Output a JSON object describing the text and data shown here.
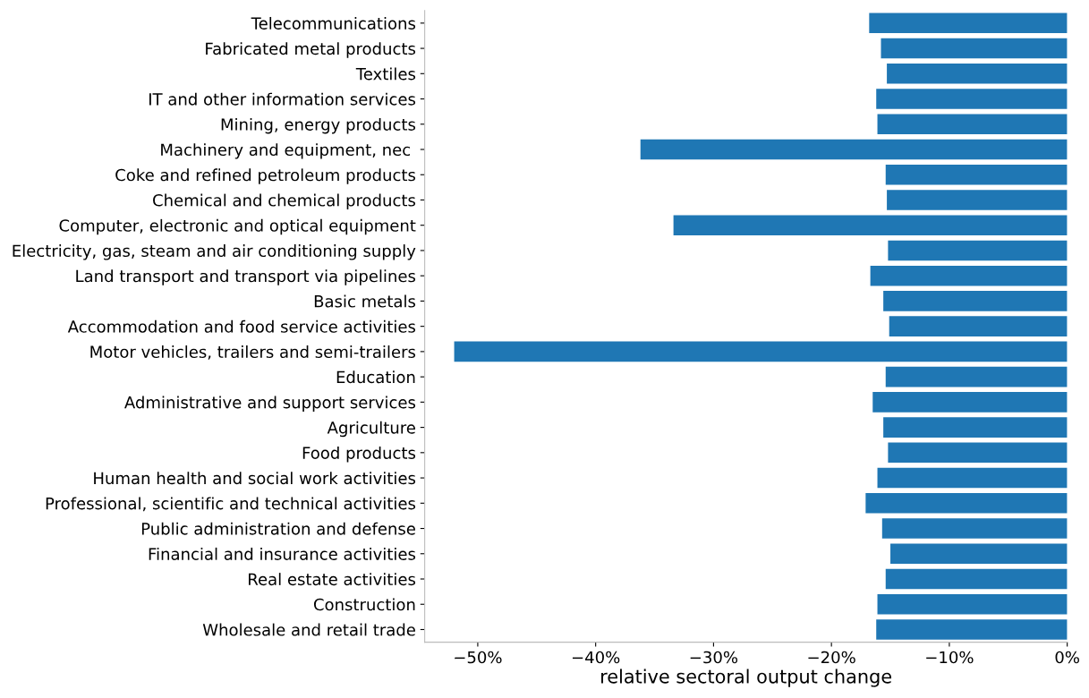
{
  "chart_data": {
    "type": "bar",
    "orientation": "horizontal",
    "xlabel": "relative sectoral output change",
    "color": "#1f77b4",
    "grid": false,
    "legend": false,
    "categories": [
      "Telecommunications",
      "Fabricated metal products",
      "Textiles",
      "IT and other information services",
      "Mining, energy products",
      "Machinery and equipment, nec ",
      "Coke and refined petroleum products",
      "Chemical and chemical products",
      "Computer, electronic and optical equipment",
      "Electricity, gas, steam and air conditioning supply",
      "Land transport and transport via pipelines",
      "Basic metals",
      "Accommodation and food service activities",
      "Motor vehicles, trailers and semi-trailers",
      "Education",
      "Administrative and support services",
      "Agriculture",
      "Food products",
      "Human health and social work activities",
      "Professional, scientific and technical activities",
      "Public administration and defense",
      "Financial and insurance activities",
      "Real estate activities",
      "Construction",
      "Wholesale and retail trade"
    ],
    "values": [
      -16.8,
      -15.8,
      -15.3,
      -16.2,
      -16.1,
      -36.2,
      -15.4,
      -15.3,
      -33.4,
      -15.2,
      -16.7,
      -15.6,
      -15.1,
      -52.0,
      -15.4,
      -16.5,
      -15.6,
      -15.2,
      -16.1,
      -17.1,
      -15.7,
      -15.0,
      -15.4,
      -16.1,
      -16.2
    ],
    "xlim": [
      -54.5,
      0
    ],
    "xticks": [
      {
        "value": -50,
        "label": "−50%"
      },
      {
        "value": -40,
        "label": "−40%"
      },
      {
        "value": -30,
        "label": "−30%"
      },
      {
        "value": -20,
        "label": "−20%"
      },
      {
        "value": -10,
        "label": "−10%"
      },
      {
        "value": 0,
        "label": "0%"
      }
    ]
  }
}
